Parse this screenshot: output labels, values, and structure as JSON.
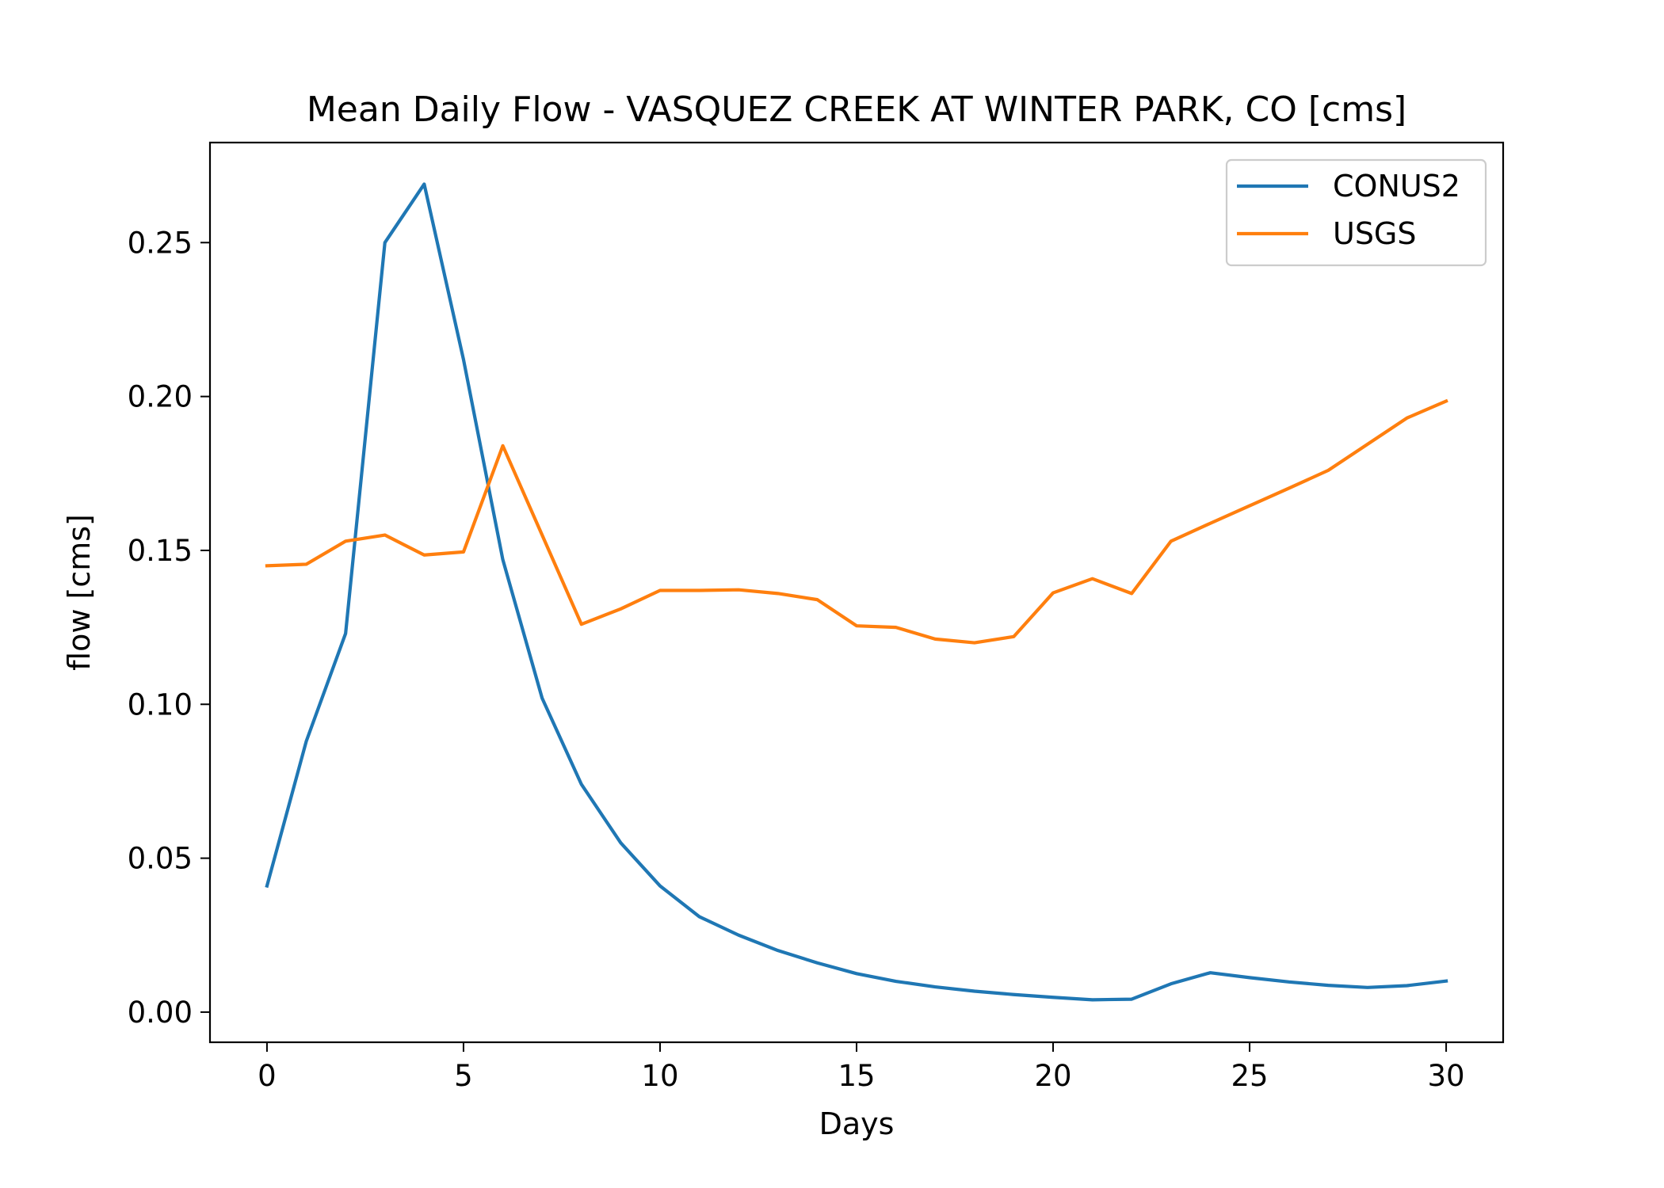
{
  "chart_data": {
    "type": "line",
    "title": "Mean Daily Flow - VASQUEZ CREEK AT WINTER PARK, CO [cms]",
    "xlabel": "Days",
    "ylabel": "flow [cms]",
    "xlim": [
      -1.45,
      31.45
    ],
    "ylim": [
      -0.0098,
      0.2825
    ],
    "xticks": [
      0,
      5,
      10,
      15,
      20,
      25,
      30
    ],
    "xtick_labels": [
      "0",
      "5",
      "10",
      "15",
      "20",
      "25",
      "30"
    ],
    "yticks": [
      0.0,
      0.05,
      0.1,
      0.15,
      0.2,
      0.25
    ],
    "ytick_labels": [
      "0.00",
      "0.05",
      "0.10",
      "0.15",
      "0.20",
      "0.25"
    ],
    "grid": false,
    "legend_position": "upper right",
    "x": [
      0,
      1,
      2,
      3,
      4,
      5,
      6,
      7,
      8,
      9,
      10,
      11,
      12,
      13,
      14,
      15,
      16,
      17,
      18,
      19,
      20,
      21,
      22,
      23,
      24,
      25,
      26,
      27,
      28,
      29,
      30
    ],
    "series": [
      {
        "name": "CONUS2",
        "color": "#1f77b4",
        "values": [
          0.041,
          0.088,
          0.123,
          0.25,
          0.269,
          0.212,
          0.147,
          0.102,
          0.074,
          0.055,
          0.041,
          0.031,
          0.025,
          0.02,
          0.016,
          0.0125,
          0.01,
          0.0082,
          0.0068,
          0.0057,
          0.0048,
          0.004,
          0.0042,
          0.0092,
          0.0128,
          0.0112,
          0.0098,
          0.0087,
          0.008,
          0.0086,
          0.0101
        ]
      },
      {
        "name": "USGS",
        "color": "#ff7f0e",
        "values": [
          0.145,
          0.1455,
          0.153,
          0.155,
          0.1485,
          0.1495,
          0.184,
          0.155,
          0.126,
          0.131,
          0.137,
          0.137,
          0.1372,
          0.136,
          0.134,
          0.1255,
          0.125,
          0.1212,
          0.12,
          0.122,
          0.1362,
          0.1408,
          0.136,
          0.153,
          0.1588,
          0.1645,
          0.1702,
          0.176,
          0.1845,
          0.193,
          0.1985
        ]
      }
    ]
  }
}
